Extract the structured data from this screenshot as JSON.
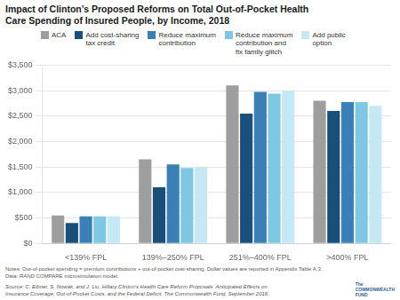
{
  "chart_data": {
    "type": "bar",
    "title": "Impact of Clinton’s Proposed Reforms on Total Out-of-Pocket Health\nCare Spending of Insured People, by Income, 2018",
    "categories": [
      "<139% FPL",
      "139%–250% FPL",
      "251%–400% FPL",
      ">400% FPL"
    ],
    "series": [
      {
        "name": "ACA",
        "color": "#9e9e9e",
        "values": [
          550,
          1650,
          3100,
          2800
        ]
      },
      {
        "name": "Add cost-sharing\ntax credit",
        "color": "#1a4f7a",
        "values": [
          400,
          1100,
          2550,
          2600
        ]
      },
      {
        "name": "Reduce maximum\ncontribution",
        "color": "#3a7fb5",
        "values": [
          530,
          1550,
          2975,
          2775
        ]
      },
      {
        "name": "Reduce maximum\ncontribution and\nfix family glitch",
        "color": "#7ec8e3",
        "values": [
          530,
          1480,
          2940,
          2775
        ]
      },
      {
        "name": "Add public\noption",
        "color": "#c5e8f5",
        "values": [
          530,
          1500,
          3000,
          2700
        ]
      }
    ],
    "ylim": [
      0,
      3500
    ],
    "yticks": [
      {
        "value": 0,
        "label": "$0"
      },
      {
        "value": 500,
        "label": "$500"
      },
      {
        "value": 1000,
        "label": "$1,000"
      },
      {
        "value": 1500,
        "label": "$1,500"
      },
      {
        "value": 2000,
        "label": "$2,000"
      },
      {
        "value": 2500,
        "label": "$2,500"
      },
      {
        "value": 3000,
        "label": "$3,000"
      },
      {
        "value": 3500,
        "label": "$3,500"
      }
    ],
    "grid": true,
    "legend": "top",
    "annotations": [
      "Notes: Out-of-pocket spending = premium contributions + out-of-pocket cost-sharing. Dollar values are reported in Appendix Table A.3.",
      "Data: RAND COMPARE microsimulation model.",
      "Source: C. Eibner, S. Nowak, and J. Liu, Hillary Clinton’s Health Care Reform Proposals: Anticipated Effects on",
      "Insurance Coverage, Out-of-Pocket Costs, and the Federal Deficit, The Commonwealth Fund, September 2016.",
      "The\nCOMMONWEALTH\nFUND"
    ]
  }
}
